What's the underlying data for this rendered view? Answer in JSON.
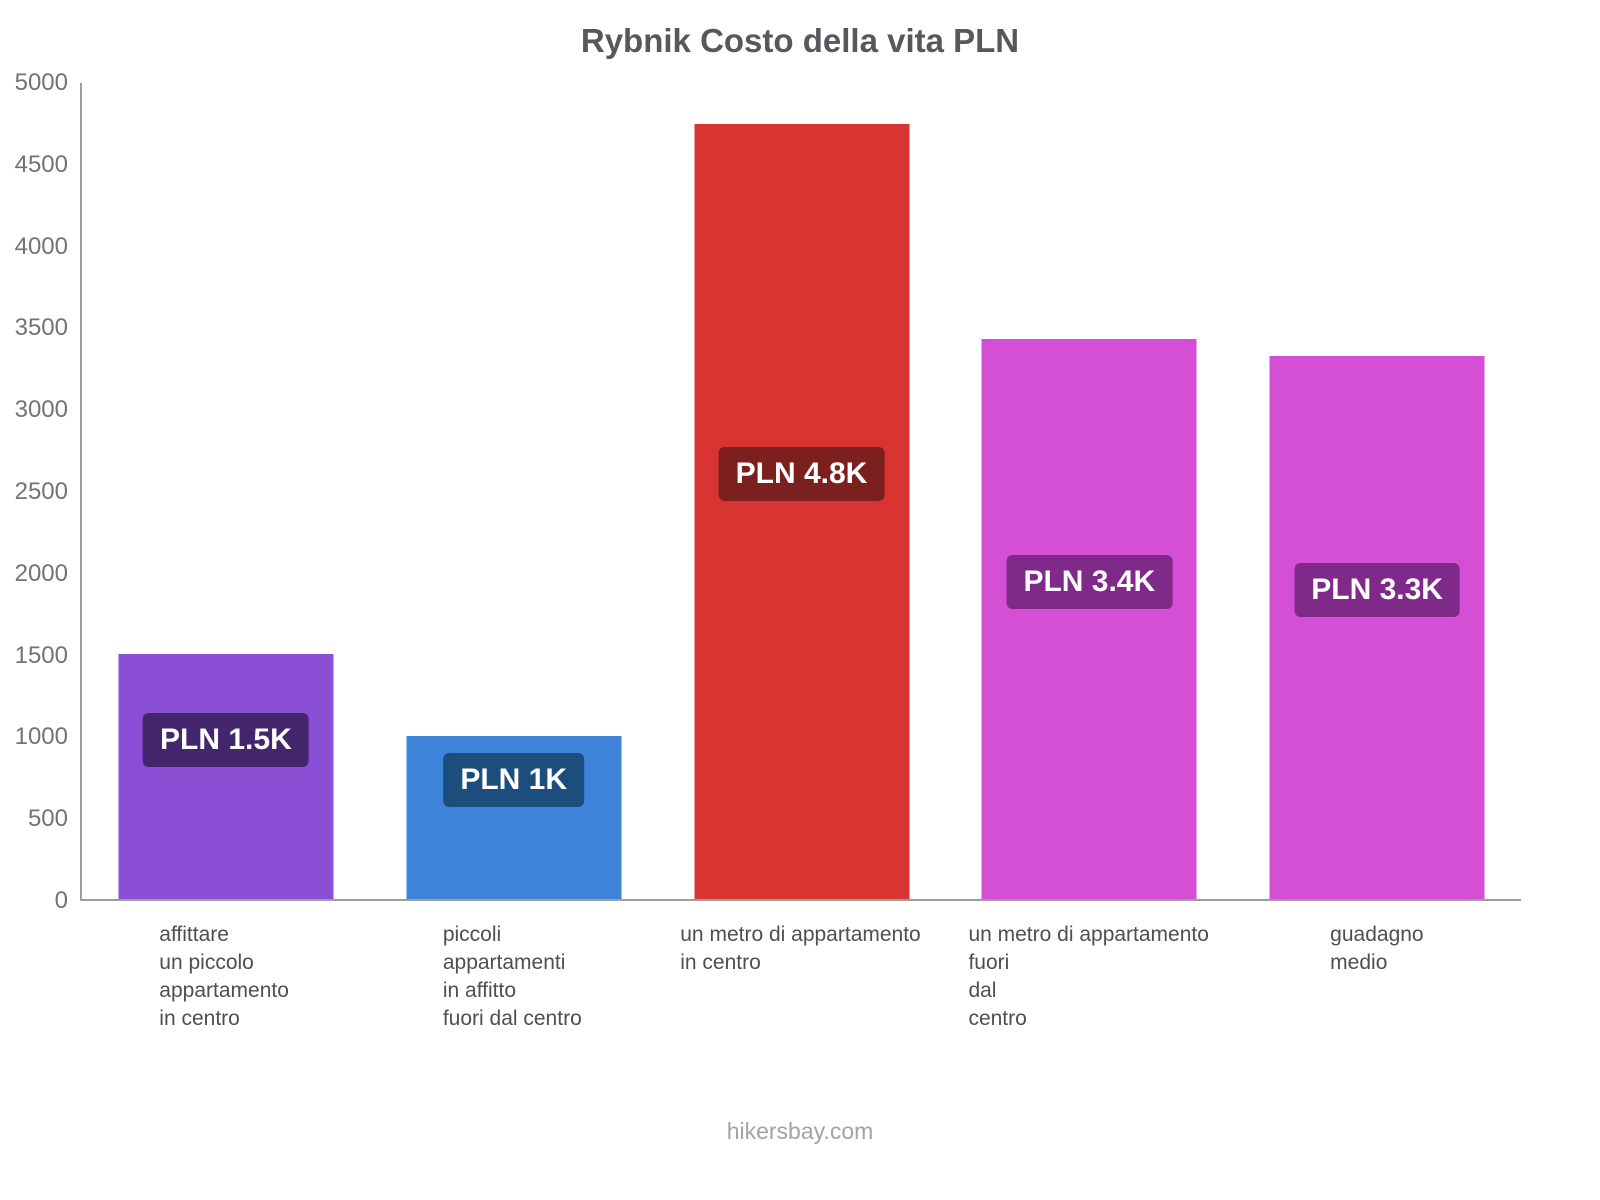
{
  "title": "Rybnik Costo della vita PLN",
  "footer": {
    "text": "hikersbay.com"
  },
  "chart_data": {
    "type": "bar",
    "title": "Rybnik Costo della vita PLN",
    "xlabel": "",
    "ylabel": "",
    "ylim": [
      0,
      5000
    ],
    "ytick_step": 500,
    "yticks": [
      0,
      500,
      1000,
      1500,
      2000,
      2500,
      3000,
      3500,
      4000,
      4500,
      5000
    ],
    "grid": false,
    "legend": false,
    "categories": [
      "affittare\nun piccolo\nappartamento\nin centro",
      "piccoli\nappartamenti\nin affitto\nfuori dal centro",
      "un metro di appartamento\nin centro",
      "un metro di appartamento\nfuori\ndal\ncentro",
      "guadagno\nmedio"
    ],
    "values": [
      1500,
      1000,
      4750,
      3430,
      3330
    ],
    "value_labels": [
      "PLN 1.5K",
      "PLN 1K",
      "PLN 4.8K",
      "PLN 3.4K",
      "PLN 3.3K"
    ],
    "bar_colors": [
      "#8b4fd6",
      "#3d83d9",
      "#d83432",
      "#d54fd5",
      "#d54fd5"
    ],
    "value_label_colors": [
      "#43266b",
      "#1d4d7d",
      "#7c1f1f",
      "#7f2a88",
      "#7f2a88"
    ],
    "watermark": "hikersbay.com"
  }
}
